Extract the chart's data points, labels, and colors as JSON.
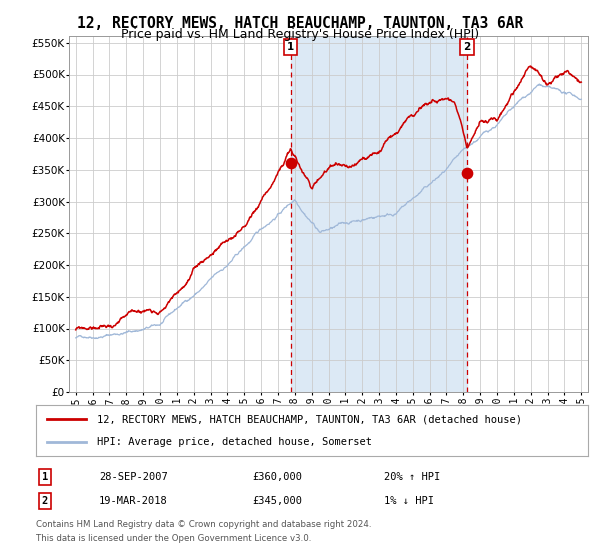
{
  "title": "12, RECTORY MEWS, HATCH BEAUCHAMP, TAUNTON, TA3 6AR",
  "subtitle": "Price paid vs. HM Land Registry's House Price Index (HPI)",
  "ylim": [
    0,
    560000
  ],
  "yticks": [
    0,
    50000,
    100000,
    150000,
    200000,
    250000,
    300000,
    350000,
    400000,
    450000,
    500000,
    550000
  ],
  "xlim_start": 1994.6,
  "xlim_end": 2025.4,
  "background_color": "#ffffff",
  "plot_bg_color": "#ffffff",
  "shaded_region_color": "#dce9f5",
  "grid_color": "#cccccc",
  "hpi_line_color": "#a0b8d8",
  "price_line_color": "#cc0000",
  "marker_color": "#cc0000",
  "dashed_line_color": "#cc0000",
  "event1_x": 2007.75,
  "event1_y": 360000,
  "event1_label": "1",
  "event1_date": "28-SEP-2007",
  "event1_price": "£360,000",
  "event1_hpi": "20% ↑ HPI",
  "event2_x": 2018.22,
  "event2_y": 345000,
  "event2_label": "2",
  "event2_date": "19-MAR-2018",
  "event2_price": "£345,000",
  "event2_hpi": "1% ↓ HPI",
  "legend_label1": "12, RECTORY MEWS, HATCH BEAUCHAMP, TAUNTON, TA3 6AR (detached house)",
  "legend_label2": "HPI: Average price, detached house, Somerset",
  "footer_line1": "Contains HM Land Registry data © Crown copyright and database right 2024.",
  "footer_line2": "This data is licensed under the Open Government Licence v3.0.",
  "title_fontsize": 10.5,
  "subtitle_fontsize": 9.0
}
